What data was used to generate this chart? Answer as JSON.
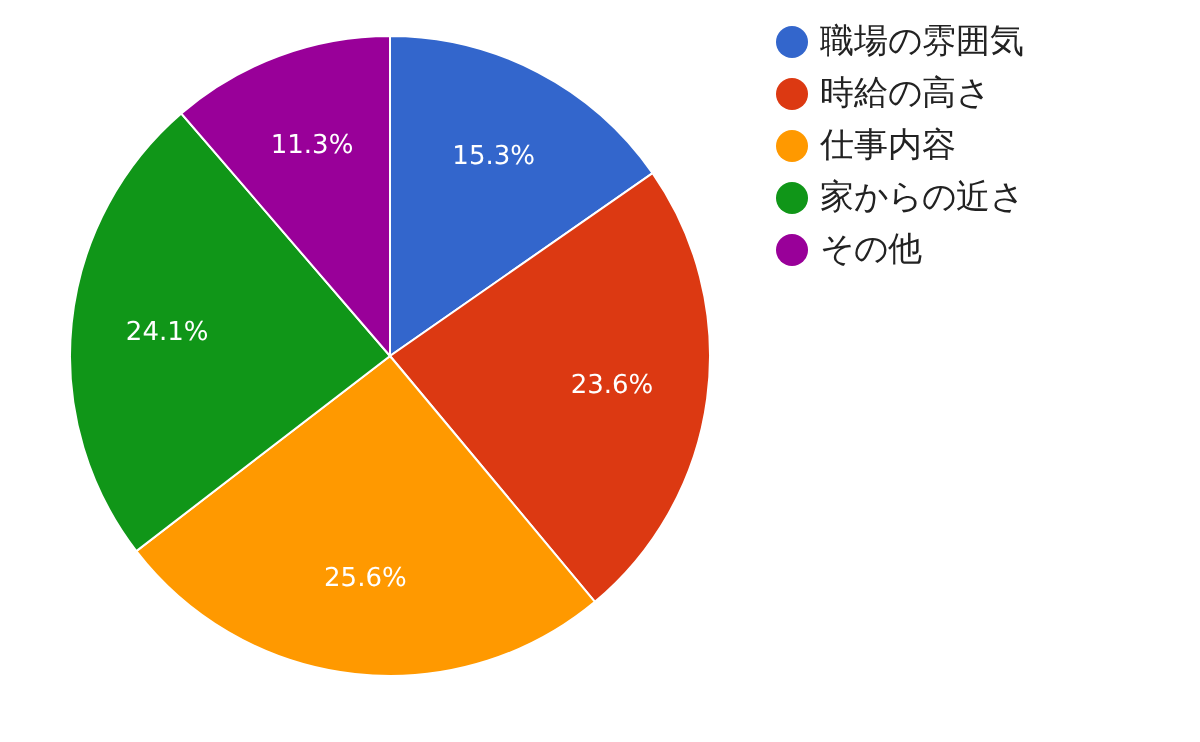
{
  "chart_data": {
    "type": "pie",
    "categories": [
      "職場の雰囲気",
      "時給の高さ",
      "仕事内容",
      "家からの近さ",
      "その他"
    ],
    "values": [
      15.3,
      23.6,
      25.6,
      24.1,
      11.3
    ],
    "colors": [
      "#3366cc",
      "#dc3912",
      "#ff9900",
      "#109618",
      "#990099"
    ],
    "value_labels": [
      "15.3%",
      "23.6%",
      "25.6%",
      "24.1%",
      "11.3%"
    ],
    "legend": "top right"
  }
}
